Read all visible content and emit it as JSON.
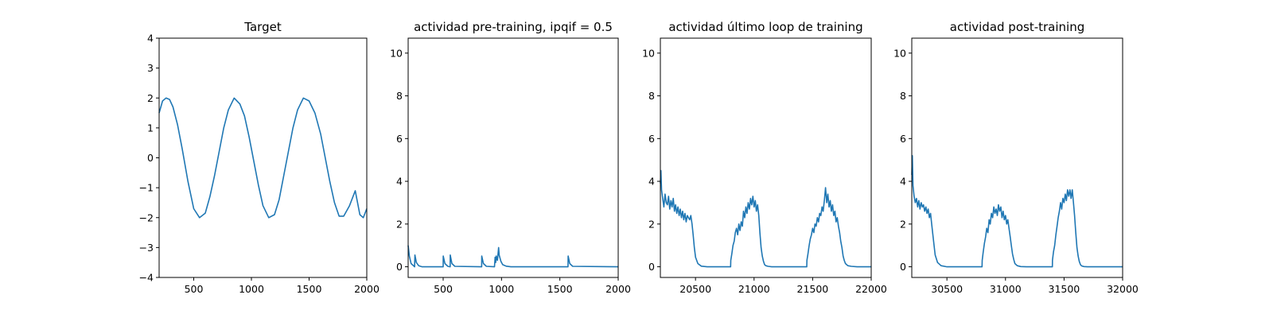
{
  "chart_data": [
    {
      "type": "line",
      "title": "Target",
      "xlabel": "",
      "ylabel": "",
      "xlim": [
        200,
        2000
      ],
      "ylim": [
        -4,
        4
      ],
      "xticks": [
        500,
        1000,
        1500,
        2000
      ],
      "xtick_labels": [
        "500",
        "1000",
        "1500",
        "2000"
      ],
      "yticks": [
        -4,
        -3,
        -2,
        -1,
        0,
        1,
        2,
        3,
        4
      ],
      "ytick_labels": [
        "−4",
        "−3",
        "−2",
        "−1",
        "0",
        "1",
        "2",
        "3",
        "4"
      ],
      "grid": false,
      "series": [
        {
          "x": [
            200,
            230,
            260,
            290,
            320,
            360,
            400,
            450,
            500,
            550,
            600,
            640,
            680,
            720,
            760,
            800,
            850,
            900,
            940,
            980,
            1020,
            1060,
            1100,
            1150,
            1200,
            1240,
            1280,
            1320,
            1360,
            1400,
            1450,
            1500,
            1550,
            1600,
            1640,
            1680,
            1720,
            1760,
            1800,
            1850,
            1900,
            1940,
            1970,
            2000
          ],
          "y": [
            1.5,
            1.9,
            2.0,
            1.95,
            1.7,
            1.1,
            0.3,
            -0.8,
            -1.7,
            -2.0,
            -1.85,
            -1.3,
            -0.6,
            0.2,
            1.0,
            1.6,
            2.0,
            1.8,
            1.4,
            0.7,
            -0.1,
            -0.9,
            -1.6,
            -2.0,
            -1.9,
            -1.4,
            -0.6,
            0.2,
            1.0,
            1.6,
            2.0,
            1.9,
            1.5,
            0.8,
            0.0,
            -0.8,
            -1.5,
            -1.95,
            -1.95,
            -1.6,
            -1.1,
            -1.9,
            -2.0,
            -1.7
          ]
        }
      ]
    },
    {
      "type": "line",
      "title": "actividad pre-training, ipqif = 0.5",
      "xlabel": "",
      "ylabel": "",
      "xlim": [
        200,
        2000
      ],
      "ylim": [
        -0.5,
        10.7
      ],
      "xticks": [
        500,
        1000,
        1500,
        2000
      ],
      "xtick_labels": [
        "500",
        "1000",
        "1500",
        "2000"
      ],
      "yticks": [
        0,
        2,
        4,
        6,
        8,
        10
      ],
      "ytick_labels": [
        "0",
        "2",
        "4",
        "6",
        "8",
        "10"
      ],
      "grid": false,
      "series": [
        {
          "x": [
            200,
            210,
            225,
            245,
            255,
            258,
            270,
            290,
            320,
            500,
            501,
            515,
            540,
            560,
            561,
            575,
            600,
            830,
            831,
            845,
            870,
            940,
            945,
            950,
            955,
            965,
            975,
            980,
            995,
            1010,
            1040,
            1080,
            1570,
            1571,
            1585,
            1610,
            2000
          ],
          "y": [
            1.0,
            0.5,
            0.15,
            0.05,
            0.0,
            0.55,
            0.2,
            0.05,
            0.0,
            0.0,
            0.5,
            0.15,
            0.02,
            0.0,
            0.55,
            0.15,
            0.02,
            0.0,
            0.5,
            0.15,
            0.02,
            0.0,
            0.45,
            0.2,
            0.5,
            0.3,
            0.9,
            0.55,
            0.25,
            0.1,
            0.03,
            0.0,
            0.0,
            0.5,
            0.15,
            0.02,
            0.0
          ]
        }
      ]
    },
    {
      "type": "line",
      "title": "actividad último loop de training",
      "xlabel": "",
      "ylabel": "",
      "xlim": [
        20200,
        22000
      ],
      "ylim": [
        -0.5,
        10.7
      ],
      "xticks": [
        20500,
        21000,
        21500,
        22000
      ],
      "xtick_labels": [
        "20500",
        "21000",
        "21500",
        "22000"
      ],
      "yticks": [
        0,
        2,
        4,
        6,
        8,
        10
      ],
      "ytick_labels": [
        "0",
        "2",
        "4",
        "6",
        "8",
        "10"
      ],
      "grid": false,
      "series": [
        {
          "x": [
            20200,
            20205,
            20210,
            20220,
            20230,
            20240,
            20250,
            20260,
            20270,
            20280,
            20290,
            20300,
            20310,
            20320,
            20330,
            20340,
            20350,
            20360,
            20370,
            20380,
            20390,
            20400,
            20410,
            20420,
            20430,
            20440,
            20450,
            20460,
            20470,
            20480,
            20490,
            20500,
            20520,
            20550,
            20600,
            20700,
            20800,
            20801,
            20810,
            20820,
            20830,
            20840,
            20850,
            20860,
            20870,
            20880,
            20890,
            20900,
            20910,
            20920,
            20930,
            20940,
            20950,
            20960,
            20970,
            20980,
            20990,
            21000,
            21010,
            21020,
            21030,
            21040,
            21050,
            21060,
            21070,
            21080,
            21090,
            21100,
            21120,
            21150,
            21200,
            21300,
            21400,
            21450,
            21451,
            21460,
            21470,
            21480,
            21490,
            21500,
            21510,
            21520,
            21530,
            21540,
            21550,
            21560,
            21570,
            21580,
            21590,
            21600,
            21610,
            21620,
            21630,
            21640,
            21650,
            21660,
            21670,
            21680,
            21690,
            21700,
            21710,
            21720,
            21730,
            21740,
            21750,
            21760,
            21770,
            21780,
            21800,
            21830,
            21880,
            22000
          ],
          "y": [
            3.9,
            4.5,
            3.6,
            3.2,
            2.8,
            3.4,
            3.0,
            2.9,
            3.3,
            2.7,
            3.1,
            2.8,
            3.2,
            2.6,
            2.9,
            2.5,
            2.8,
            2.4,
            2.7,
            2.3,
            2.6,
            2.2,
            2.5,
            2.1,
            2.4,
            2.3,
            2.2,
            2.4,
            2.0,
            1.5,
            0.9,
            0.45,
            0.15,
            0.03,
            0.0,
            0.0,
            0.0,
            0.3,
            0.6,
            1.0,
            1.2,
            1.6,
            1.8,
            1.5,
            2.0,
            1.7,
            2.1,
            1.9,
            2.6,
            2.3,
            2.8,
            2.5,
            3.0,
            2.7,
            3.2,
            2.9,
            3.3,
            2.8,
            3.1,
            2.6,
            2.9,
            2.4,
            1.6,
            0.9,
            0.5,
            0.25,
            0.1,
            0.05,
            0.02,
            0.0,
            0.0,
            0.0,
            0.0,
            0.0,
            0.3,
            0.6,
            1.0,
            1.3,
            1.5,
            1.8,
            1.6,
            2.0,
            1.9,
            2.3,
            2.1,
            2.5,
            2.4,
            2.8,
            2.6,
            3.1,
            3.7,
            3.0,
            3.4,
            2.8,
            3.1,
            2.6,
            2.9,
            2.4,
            2.6,
            2.1,
            2.3,
            1.9,
            1.6,
            1.2,
            0.9,
            0.5,
            0.3,
            0.15,
            0.05,
            0.02,
            0.0,
            0.0
          ]
        }
      ]
    },
    {
      "type": "line",
      "title": "actividad post-training",
      "xlabel": "",
      "ylabel": "",
      "xlim": [
        30200,
        32000
      ],
      "ylim": [
        -0.5,
        10.7
      ],
      "xticks": [
        30500,
        31000,
        31500,
        32000
      ],
      "xtick_labels": [
        "30500",
        "31000",
        "31500",
        "32000"
      ],
      "yticks": [
        0,
        2,
        4,
        6,
        8,
        10
      ],
      "ytick_labels": [
        "0",
        "2",
        "4",
        "6",
        "8",
        "10"
      ],
      "grid": false,
      "series": [
        {
          "x": [
            30200,
            30205,
            30210,
            30220,
            30230,
            30240,
            30250,
            30260,
            30270,
            30280,
            30290,
            30300,
            30310,
            30320,
            30330,
            30340,
            30350,
            30360,
            30370,
            30380,
            30390,
            30400,
            30420,
            30450,
            30500,
            30600,
            30700,
            30800,
            30801,
            30810,
            30820,
            30830,
            30840,
            30850,
            30860,
            30870,
            30880,
            30890,
            30900,
            30910,
            30920,
            30930,
            30940,
            30950,
            30960,
            30970,
            30980,
            30990,
            31000,
            31010,
            31020,
            31030,
            31040,
            31050,
            31060,
            31070,
            31080,
            31100,
            31130,
            31180,
            31250,
            31350,
            31400,
            31401,
            31410,
            31420,
            31430,
            31440,
            31450,
            31460,
            31470,
            31480,
            31490,
            31500,
            31510,
            31520,
            31530,
            31540,
            31550,
            31560,
            31570,
            31580,
            31590,
            31600,
            31610,
            31620,
            31630,
            31640,
            31650,
            31670,
            31700,
            31750,
            32000
          ],
          "y": [
            4.3,
            5.2,
            3.8,
            3.3,
            3.0,
            3.2,
            2.8,
            3.1,
            2.7,
            3.0,
            2.8,
            2.9,
            2.6,
            2.8,
            2.5,
            2.7,
            2.3,
            2.5,
            2.0,
            1.5,
            1.0,
            0.55,
            0.2,
            0.05,
            0.0,
            0.0,
            0.0,
            0.0,
            0.3,
            0.7,
            1.1,
            1.4,
            1.8,
            1.6,
            2.2,
            2.0,
            2.5,
            2.3,
            2.8,
            2.5,
            2.7,
            2.4,
            2.9,
            2.6,
            2.8,
            2.3,
            2.6,
            2.2,
            2.4,
            2.0,
            2.2,
            1.8,
            1.4,
            1.0,
            0.6,
            0.35,
            0.15,
            0.05,
            0.01,
            0.0,
            0.0,
            0.0,
            0.0,
            0.3,
            0.7,
            1.0,
            1.5,
            1.9,
            2.3,
            2.6,
            3.0,
            2.7,
            3.2,
            3.0,
            3.4,
            3.1,
            3.6,
            3.3,
            3.6,
            3.2,
            3.6,
            3.0,
            2.4,
            1.6,
            0.9,
            0.5,
            0.25,
            0.1,
            0.04,
            0.01,
            0.0,
            0.0,
            0.0
          ]
        }
      ]
    }
  ],
  "colors": {
    "series": "#1f77b4",
    "axis": "#000000",
    "background": "#ffffff"
  }
}
